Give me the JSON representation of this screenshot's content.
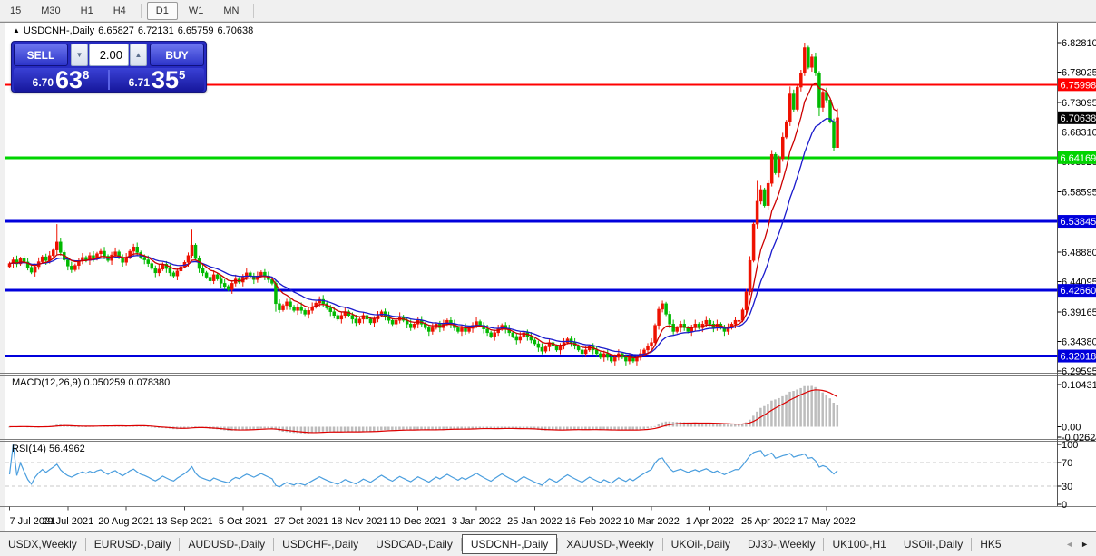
{
  "toolbar": {
    "timeframes": [
      {
        "label": "15",
        "active": false
      },
      {
        "label": "M30",
        "active": false
      },
      {
        "label": "H1",
        "active": false
      },
      {
        "label": "H4",
        "active": false
      },
      {
        "label": "D1",
        "active": true
      },
      {
        "label": "W1",
        "active": false
      },
      {
        "label": "MN",
        "active": false
      }
    ]
  },
  "symbol_line": {
    "collapse_icon": "▲",
    "title": "USDCNH-,Daily",
    "open": "6.65827",
    "high": "6.72131",
    "low": "6.65759",
    "close": "6.70638"
  },
  "trade_widget": {
    "sell_label": "SELL",
    "buy_label": "BUY",
    "volume": "2.00",
    "spin_down_icon": "▼",
    "spin_up_icon": "▲",
    "sell_small": "6.70",
    "sell_big": "63",
    "sell_sup": "8",
    "buy_small": "6.71",
    "buy_big": "35",
    "buy_sup": "5"
  },
  "indicators": {
    "macd_label": "MACD(12,26,9) 0.050259 0.078380",
    "rsi_label": "RSI(14) 56.4962"
  },
  "colors": {
    "bull": "#ee1100",
    "bear": "#00b900",
    "ma_fast": "#cc0000",
    "ma_slow": "#1a1acc",
    "macd_hist": "#bdbdbd",
    "macd_signal": "#dd0000",
    "rsi_line": "#4a9ede",
    "grid_dash": "#c9c9c9",
    "level_red": "#ff0000",
    "level_green": "#00d400",
    "level_blue": "#0000dc",
    "badge_black": "#000000"
  },
  "chart_data": {
    "type": "candlestick",
    "symbol": "USDCNH-",
    "timeframe": "Daily",
    "current_ohlc": {
      "open": 6.65827,
      "high": 6.72131,
      "low": 6.65759,
      "close": 6.70638
    },
    "price_axis_range": [
      6.293,
      6.859
    ],
    "price_ticks": [
      6.8281,
      6.78025,
      6.73095,
      6.6831,
      6.63525,
      6.58595,
      6.4888,
      6.44095,
      6.39165,
      6.3438,
      6.29595
    ],
    "levels": [
      {
        "price": 6.75998,
        "label": "6.75998",
        "color": "#ff0000",
        "width": 2
      },
      {
        "price": 6.64169,
        "label": "6.64169",
        "color": "#00d400",
        "width": 3
      },
      {
        "price": 6.53845,
        "label": "6.53845",
        "color": "#0000dc",
        "width": 3
      },
      {
        "price": 6.4266,
        "label": "6.42660",
        "color": "#0000dc",
        "width": 3
      },
      {
        "price": 6.32018,
        "label": "6.32018",
        "color": "#0000dc",
        "width": 3
      }
    ],
    "current_price_marker": {
      "price": 6.70638,
      "label": "6.70638",
      "bg": "#000000"
    },
    "first_open": 6.465,
    "closes": [
      6.47,
      6.476,
      6.4695,
      6.478,
      6.4725,
      6.464,
      6.456,
      6.465,
      6.473,
      6.481,
      6.475,
      6.483,
      6.492,
      6.505,
      6.488,
      6.476,
      6.466,
      6.46,
      6.467,
      6.474,
      6.48,
      6.475,
      6.483,
      6.478,
      6.486,
      6.49,
      6.482,
      6.475,
      6.484,
      6.489,
      6.48,
      6.472,
      6.48,
      6.49,
      6.497,
      6.488,
      6.48,
      6.476,
      6.47,
      6.462,
      6.455,
      6.461,
      6.469,
      6.462,
      6.455,
      6.45,
      6.458,
      6.465,
      6.472,
      6.483,
      6.5,
      6.478,
      6.462,
      6.455,
      6.448,
      6.442,
      6.452,
      6.445,
      6.438,
      6.433,
      6.428,
      6.438,
      6.445,
      6.44,
      6.448,
      6.455,
      6.45,
      6.444,
      6.45,
      6.456,
      6.45,
      6.444,
      6.438,
      6.405,
      6.395,
      6.402,
      6.408,
      6.4,
      6.394,
      6.4,
      6.394,
      6.388,
      6.394,
      6.4,
      6.406,
      6.412,
      6.405,
      6.398,
      6.392,
      6.386,
      6.38,
      6.386,
      6.392,
      6.386,
      6.38,
      6.374,
      6.38,
      6.386,
      6.38,
      6.374,
      6.38,
      6.386,
      6.392,
      6.385,
      6.378,
      6.372,
      6.378,
      6.384,
      6.378,
      6.372,
      6.366,
      6.372,
      6.378,
      6.372,
      6.366,
      6.36,
      6.366,
      6.372,
      6.366,
      6.372,
      6.378,
      6.372,
      6.366,
      6.36,
      6.366,
      6.36,
      6.365,
      6.37,
      6.376,
      6.37,
      6.364,
      6.358,
      6.352,
      6.358,
      6.364,
      6.37,
      6.364,
      6.358,
      6.352,
      6.346,
      6.352,
      6.358,
      6.352,
      6.346,
      6.34,
      6.334,
      6.328,
      6.335,
      6.342,
      6.336,
      6.33,
      6.336,
      6.342,
      6.348,
      6.342,
      6.336,
      6.33,
      6.324,
      6.33,
      6.336,
      6.33,
      6.324,
      6.318,
      6.324,
      6.318,
      6.312,
      6.318,
      6.324,
      6.318,
      6.312,
      6.318,
      6.312,
      6.318,
      6.324,
      6.33,
      6.336,
      6.342,
      6.37,
      6.396,
      6.405,
      6.388,
      6.372,
      6.36,
      6.366,
      6.372,
      6.366,
      6.36,
      6.366,
      6.372,
      6.366,
      6.372,
      6.378,
      6.372,
      6.366,
      6.372,
      6.366,
      6.36,
      6.366,
      6.372,
      6.378,
      6.378,
      6.395,
      6.424,
      6.475,
      6.534,
      6.571,
      6.59,
      6.564,
      6.6,
      6.647,
      6.617,
      6.64,
      6.675,
      6.7,
      6.745,
      6.72,
      6.756,
      6.779,
      6.82,
      6.788,
      6.805,
      6.779,
      6.723,
      6.748,
      6.735,
      6.7,
      6.658,
      6.70638
    ],
    "wick_overrides": {
      "13": {
        "hi": 6.534
      },
      "50": {
        "hi": 6.525
      },
      "73": {
        "lo": 6.392
      },
      "179": {
        "hi": 6.41
      },
      "205": {
        "hi": 6.604
      },
      "214": {
        "hi": 6.757
      },
      "218": {
        "hi": 6.8281
      },
      "222": {
        "lo": 6.709
      },
      "226": {
        "lo": 6.652
      },
      "227": {
        "hi": 6.72131,
        "lo": 6.65759
      }
    },
    "ma": {
      "fast": {
        "period": 8,
        "color": "#cc0000"
      },
      "slow": {
        "period": 17,
        "color": "#1a1acc"
      }
    },
    "macd": {
      "fast": 12,
      "slow": 26,
      "signal": 9,
      "axis": [
        {
          "label": "0.104313",
          "value": 0.104313
        },
        {
          "label": "0.00",
          "value": 0
        },
        {
          "label": "-0.02624",
          "value": -0.02624
        }
      ],
      "current": [
        0.050259,
        0.07838
      ]
    },
    "rsi": {
      "period": 14,
      "current": 56.4962,
      "axis": [
        {
          "label": "100",
          "value": 100
        },
        {
          "label": "70",
          "value": 70,
          "dashed": true
        },
        {
          "label": "30",
          "value": 30,
          "dashed": true
        },
        {
          "label": "0",
          "value": 0
        }
      ]
    },
    "date_labels": [
      "7 Jul 2021",
      "29 Jul 2021",
      "20 Aug 2021",
      "13 Sep 2021",
      "5 Oct 2021",
      "27 Oct 2021",
      "18 Nov 2021",
      "10 Dec 2021",
      "3 Jan 2022",
      "25 Jan 2022",
      "16 Feb 2022",
      "10 Mar 2022",
      "1 Apr 2022",
      "25 Apr 2022",
      "17 May 2022"
    ]
  },
  "tabs": {
    "items": [
      {
        "label": "USDX,Weekly",
        "active": false
      },
      {
        "label": "EURUSD-,Daily",
        "active": false
      },
      {
        "label": "AUDUSD-,Daily",
        "active": false
      },
      {
        "label": "USDCHF-,Daily",
        "active": false
      },
      {
        "label": "USDCAD-,Daily",
        "active": false
      },
      {
        "label": "USDCNH-,Daily",
        "active": true
      },
      {
        "label": "XAUUSD-,Weekly",
        "active": false
      },
      {
        "label": "UKOil-,Daily",
        "active": false
      },
      {
        "label": "DJ30-,Weekly",
        "active": false
      },
      {
        "label": "UK100-,H1",
        "active": false
      },
      {
        "label": "USOil-,Daily",
        "active": false
      },
      {
        "label": "HK5",
        "active": false
      }
    ],
    "scroll_left_icon": "◄",
    "scroll_right_icon": "►"
  }
}
